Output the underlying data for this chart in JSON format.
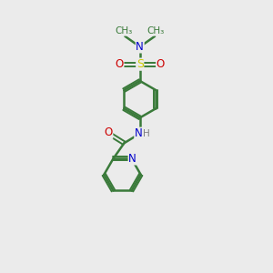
{
  "background_color": "#ebebeb",
  "bond_color": "#3a7a3a",
  "colors": {
    "N": "#0000cc",
    "O": "#cc0000",
    "S": "#cccc00",
    "C": "#3a7a3a",
    "H": "#808080"
  },
  "figsize": [
    3.0,
    3.0
  ],
  "dpi": 100,
  "xlim": [
    0,
    10
  ],
  "ylim": [
    0,
    12
  ]
}
